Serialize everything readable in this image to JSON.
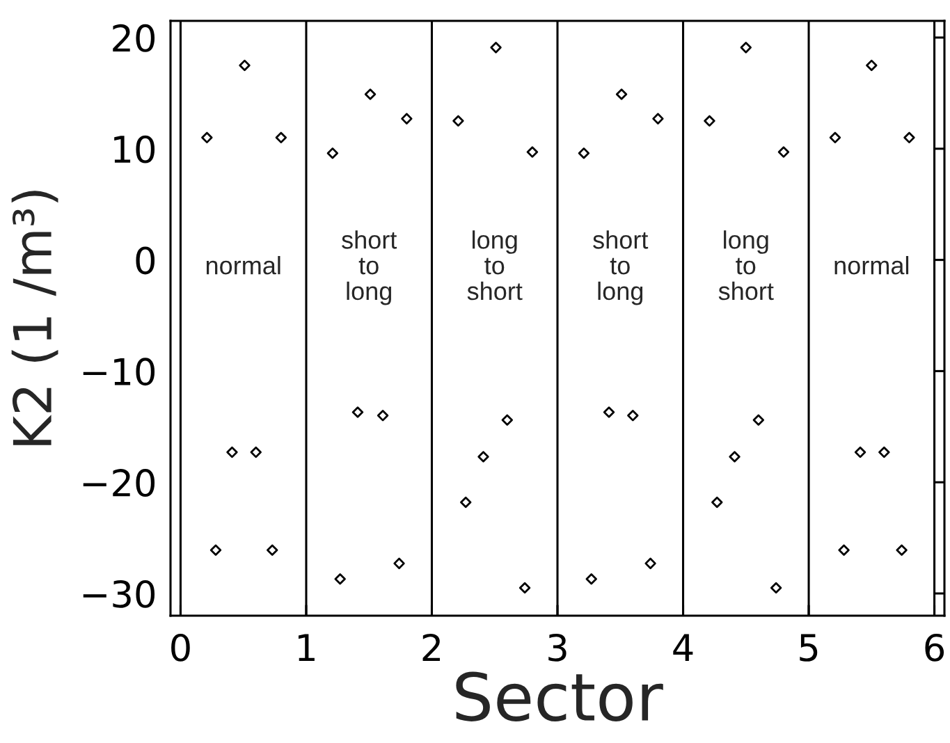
{
  "chart_data": {
    "type": "scatter",
    "xlabel": "Sector",
    "ylabel": "K2 (1 /m³)",
    "xlim": [
      -0.08,
      6.08
    ],
    "ylim": [
      -32,
      21.5
    ],
    "xticks": [
      0,
      1,
      2,
      3,
      4,
      5,
      6
    ],
    "yticks": [
      -30,
      -20,
      -10,
      0,
      10,
      20
    ],
    "grid": false,
    "marker": "diamond",
    "series": [
      {
        "color": "#000000",
        "x": [
          0.21,
          0.28,
          0.41,
          0.51,
          0.6,
          0.73,
          0.8,
          1.21,
          1.27,
          1.41,
          1.51,
          1.61,
          1.74,
          1.8,
          2.21,
          2.27,
          2.41,
          2.51,
          2.6,
          2.74,
          2.8,
          3.21,
          3.27,
          3.41,
          3.51,
          3.6,
          3.74,
          3.8,
          4.21,
          4.27,
          4.41,
          4.5,
          4.6,
          4.74,
          4.8,
          5.21,
          5.28,
          5.41,
          5.5,
          5.6,
          5.74,
          5.8
        ],
        "values": [
          11.0,
          -26.1,
          -17.3,
          17.5,
          -17.3,
          -26.1,
          11.0,
          9.6,
          -28.7,
          -13.7,
          14.9,
          -14.0,
          -27.3,
          12.7,
          12.5,
          -21.8,
          -17.7,
          19.1,
          -14.4,
          -29.5,
          9.7,
          9.6,
          -28.7,
          -13.7,
          14.9,
          -14.0,
          -27.3,
          12.7,
          12.5,
          -21.8,
          -17.7,
          19.1,
          -14.4,
          -29.5,
          9.7,
          11.0,
          -26.1,
          -17.3,
          17.5,
          -17.3,
          -26.1,
          11.0
        ]
      }
    ],
    "ref_lines": [
      {
        "axis": "x",
        "value": 0,
        "color": "#000000"
      },
      {
        "axis": "x",
        "value": 1,
        "color": "#000000"
      },
      {
        "axis": "x",
        "value": 2,
        "color": "#000000"
      },
      {
        "axis": "x",
        "value": 3,
        "color": "#000000"
      },
      {
        "axis": "x",
        "value": 4,
        "color": "#000000"
      },
      {
        "axis": "x",
        "value": 5,
        "color": "#000000"
      },
      {
        "axis": "x",
        "value": 6,
        "color": "#000000"
      }
    ],
    "annotations": [
      "normal",
      "short\nto\nlong",
      "long\nto\nshort",
      "short\nto\nlong",
      "long\nto\nshort",
      "normal"
    ]
  }
}
